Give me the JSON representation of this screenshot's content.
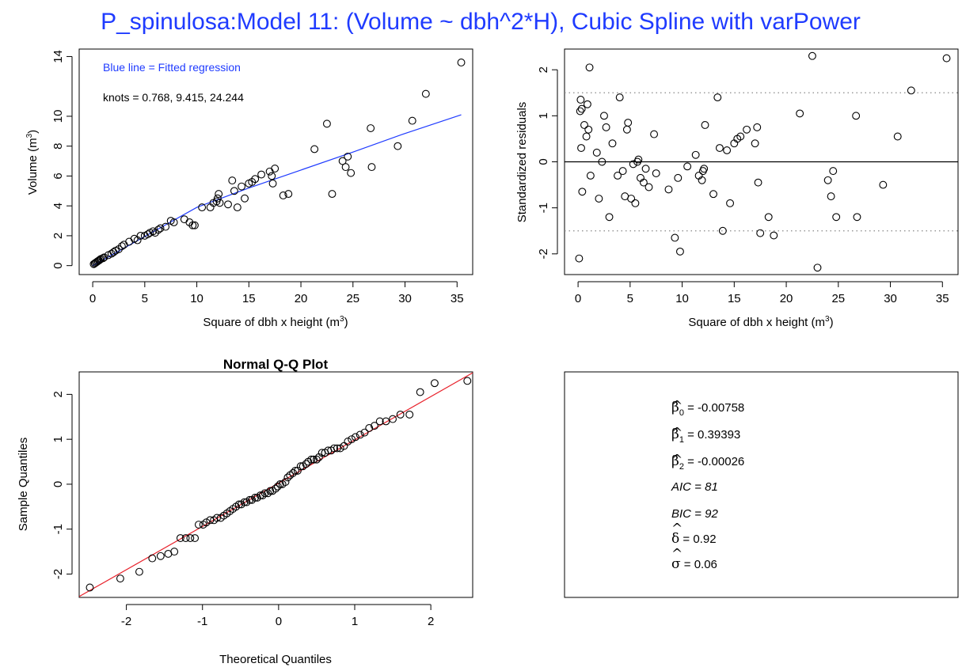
{
  "figure_title": "P_spinulosa:Model 11: (Volume ~ dbh^2*H), Cubic Spline with varPower",
  "colors": {
    "title": "#1f3bff",
    "fit_line": "#1f3bff",
    "qq_line": "#e8202a",
    "qq_points_stroke": "#000000",
    "points": "#000000"
  },
  "chart_data": [
    {
      "type": "scatter",
      "panel": "fitted",
      "xlabel": "Square of dbh x height",
      "xlabel_unit": "(m",
      "xlabel_unit_sup": "3",
      "xlabel_unit_close": ")",
      "ylabel": "Volume",
      "ylabel_unit": "(m",
      "ylabel_unit_sup": "3",
      "ylabel_unit_close": ")",
      "xlim": [
        -1.3,
        36.5
      ],
      "ylim": [
        -0.6,
        14.5
      ],
      "xticks": [
        0,
        5,
        10,
        15,
        20,
        25,
        30,
        35
      ],
      "xtick_labels": [
        "0",
        "5",
        "10",
        "15",
        "20",
        "25",
        "30",
        "35"
      ],
      "yticks": [
        0,
        2,
        4,
        6,
        8,
        10,
        14
      ],
      "ytick_labels": [
        "0",
        "2",
        "4",
        "6",
        "8",
        "10",
        "14"
      ],
      "annotations": [
        "Blue line = Fitted regression",
        "knots = 0.768, 9.415, 24.244"
      ],
      "fitted_line": {
        "x": [
          0,
          5,
          10,
          15,
          20,
          25,
          30,
          35.4
        ],
        "y": [
          0.0,
          1.95,
          3.9,
          5.2,
          6.4,
          7.6,
          8.85,
          10.1
        ]
      },
      "points": {
        "x": [
          0.1,
          0.2,
          0.3,
          0.4,
          0.5,
          0.6,
          0.7,
          0.8,
          1.0,
          1.1,
          1.5,
          1.8,
          2.0,
          2.2,
          2.5,
          2.8,
          3.0,
          3.5,
          4.0,
          4.3,
          4.6,
          5.0,
          5.3,
          5.5,
          5.8,
          6.0,
          6.3,
          6.5,
          7.0,
          7.5,
          7.8,
          8.8,
          9.3,
          9.6,
          9.8,
          10.5,
          11.3,
          11.6,
          11.9,
          12.0,
          12.1,
          12.2,
          13.0,
          13.4,
          13.6,
          13.9,
          14.3,
          14.6,
          15.0,
          15.3,
          15.6,
          16.2,
          17.0,
          17.2,
          17.3,
          17.5,
          18.3,
          18.8,
          21.3,
          22.5,
          23.0,
          24.0,
          24.3,
          24.5,
          24.8,
          26.7,
          26.8,
          29.3,
          30.7,
          32.0,
          35.4
        ],
        "y": [
          0.1,
          0.15,
          0.2,
          0.25,
          0.3,
          0.35,
          0.4,
          0.45,
          0.5,
          0.55,
          0.7,
          0.8,
          0.9,
          1.0,
          1.1,
          1.3,
          1.4,
          1.6,
          1.8,
          1.7,
          2.0,
          2.0,
          2.1,
          2.2,
          2.3,
          2.2,
          2.4,
          2.5,
          2.6,
          3.0,
          2.9,
          3.1,
          2.9,
          2.7,
          2.7,
          3.9,
          3.9,
          4.2,
          4.3,
          4.5,
          4.8,
          4.2,
          4.1,
          5.7,
          5.0,
          3.9,
          5.3,
          4.5,
          5.5,
          5.6,
          5.8,
          6.1,
          6.3,
          6.0,
          5.5,
          6.5,
          4.7,
          4.8,
          7.8,
          9.5,
          4.8,
          7.0,
          6.6,
          7.3,
          6.2,
          9.2,
          6.6,
          8.0,
          9.7,
          11.5,
          13.6
        ]
      }
    },
    {
      "type": "scatter",
      "panel": "residuals",
      "xlabel": "Square of dbh x height",
      "xlabel_unit": "(m",
      "xlabel_unit_sup": "3",
      "xlabel_unit_close": ")",
      "ylabel": "Standardized residuals",
      "xlim": [
        -1.3,
        36.5
      ],
      "ylim": [
        -2.45,
        2.45
      ],
      "xticks": [
        0,
        5,
        10,
        15,
        20,
        25,
        30,
        35
      ],
      "xtick_labels": [
        "0",
        "5",
        "10",
        "15",
        "20",
        "25",
        "30",
        "35"
      ],
      "yticks": [
        -2,
        -1,
        0,
        1,
        2
      ],
      "ytick_labels": [
        "-2",
        "-1",
        "0",
        "1",
        "2"
      ],
      "hlines": [
        {
          "y": 0,
          "style": "solid"
        },
        {
          "y": 1.5,
          "style": "dotted"
        },
        {
          "y": -1.5,
          "style": "dotted"
        }
      ],
      "points": {
        "x": [
          0.1,
          0.2,
          0.25,
          0.3,
          0.35,
          0.4,
          0.6,
          0.8,
          0.9,
          1.0,
          1.1,
          1.2,
          1.8,
          2.0,
          2.3,
          2.5,
          2.7,
          3.0,
          3.3,
          3.8,
          4.0,
          4.3,
          4.5,
          4.7,
          4.8,
          5.1,
          5.3,
          5.5,
          5.7,
          5.8,
          6.0,
          6.3,
          6.5,
          6.8,
          7.3,
          7.5,
          8.7,
          9.3,
          9.6,
          9.8,
          10.5,
          11.3,
          11.6,
          11.9,
          12.0,
          12.1,
          12.2,
          13.0,
          13.4,
          13.6,
          13.9,
          14.3,
          14.6,
          15.0,
          15.3,
          15.6,
          16.2,
          17.0,
          17.2,
          17.3,
          17.5,
          18.3,
          18.8,
          21.3,
          22.5,
          23.0,
          24.0,
          24.3,
          24.5,
          24.8,
          26.7,
          26.8,
          29.3,
          30.7,
          32.0,
          35.4
        ],
        "y": [
          -2.1,
          1.1,
          1.35,
          0.3,
          1.15,
          -0.65,
          0.8,
          0.55,
          1.25,
          0.7,
          2.05,
          -0.3,
          0.2,
          -0.8,
          0.0,
          1.0,
          0.75,
          -1.2,
          0.4,
          -0.3,
          1.4,
          -0.2,
          -0.75,
          0.7,
          0.85,
          -0.8,
          -0.05,
          -0.9,
          0.0,
          0.05,
          -0.35,
          -0.45,
          -0.15,
          -0.55,
          0.6,
          -0.25,
          -0.6,
          -1.65,
          -0.35,
          -1.95,
          -0.1,
          0.15,
          -0.3,
          -0.4,
          -0.2,
          -0.15,
          0.8,
          -0.7,
          1.4,
          0.3,
          -1.5,
          0.25,
          -0.9,
          0.4,
          0.5,
          0.55,
          0.7,
          0.4,
          0.75,
          -0.45,
          -1.55,
          -1.2,
          -1.6,
          1.05,
          2.3,
          -2.3,
          -0.4,
          -0.75,
          -0.2,
          -1.2,
          1.0,
          -1.2,
          -0.5,
          0.55,
          1.55,
          2.25
        ]
      }
    },
    {
      "type": "scatter",
      "panel": "qq",
      "title": "Normal Q-Q Plot",
      "xlabel": "Theoretical Quantiles",
      "ylabel": "Sample Quantiles",
      "xlim": [
        -2.62,
        2.55
      ],
      "ylim": [
        -2.52,
        2.5
      ],
      "xticks": [
        -2,
        -1,
        0,
        1,
        2
      ],
      "xtick_labels": [
        "-2",
        "-1",
        "0",
        "1",
        "2"
      ],
      "yticks": [
        -2,
        -1,
        0,
        1,
        2
      ],
      "ytick_labels": [
        "-2",
        "-1",
        "0",
        "1",
        "2"
      ],
      "qq_line": {
        "x": [
          -2.62,
          2.55
        ],
        "y": [
          -2.5,
          2.48
        ]
      },
      "points": {
        "x": [
          -2.48,
          -2.08,
          -1.83,
          -1.66,
          -1.55,
          -1.45,
          -1.37,
          -1.29,
          -1.22,
          -1.16,
          -1.1,
          -1.05,
          -0.99,
          -0.95,
          -0.9,
          -0.85,
          -0.81,
          -0.76,
          -0.72,
          -0.68,
          -0.64,
          -0.6,
          -0.56,
          -0.52,
          -0.49,
          -0.45,
          -0.42,
          -0.38,
          -0.35,
          -0.31,
          -0.28,
          -0.24,
          -0.21,
          -0.18,
          -0.14,
          -0.11,
          -0.08,
          -0.04,
          -0.01,
          0.02,
          0.05,
          0.09,
          0.12,
          0.15,
          0.19,
          0.22,
          0.25,
          0.29,
          0.32,
          0.36,
          0.39,
          0.43,
          0.46,
          0.5,
          0.53,
          0.57,
          0.61,
          0.65,
          0.69,
          0.73,
          0.77,
          0.81,
          0.86,
          0.91,
          0.96,
          1.01,
          1.07,
          1.13,
          1.19,
          1.26,
          1.33,
          1.41,
          1.5,
          1.6,
          1.72,
          1.86,
          2.05,
          2.48
        ],
        "y": [
          -2.3,
          -2.1,
          -1.95,
          -1.65,
          -1.6,
          -1.55,
          -1.5,
          -1.2,
          -1.2,
          -1.2,
          -1.2,
          -0.9,
          -0.9,
          -0.85,
          -0.8,
          -0.8,
          -0.75,
          -0.75,
          -0.7,
          -0.65,
          -0.6,
          -0.55,
          -0.5,
          -0.45,
          -0.45,
          -0.4,
          -0.4,
          -0.35,
          -0.35,
          -0.3,
          -0.3,
          -0.25,
          -0.25,
          -0.2,
          -0.2,
          -0.15,
          -0.15,
          -0.1,
          -0.05,
          0.0,
          0.0,
          0.05,
          0.15,
          0.2,
          0.25,
          0.3,
          0.3,
          0.4,
          0.4,
          0.45,
          0.5,
          0.55,
          0.55,
          0.55,
          0.6,
          0.7,
          0.7,
          0.75,
          0.75,
          0.8,
          0.8,
          0.8,
          0.85,
          0.95,
          1.0,
          1.05,
          1.1,
          1.15,
          1.25,
          1.3,
          1.4,
          1.4,
          1.45,
          1.55,
          1.55,
          2.05,
          2.25,
          2.3
        ]
      }
    }
  ],
  "stats_box": {
    "beta0": {
      "symbol": "β",
      "hat": "^",
      "sub": "0",
      "text": " = -0.00758"
    },
    "beta1": {
      "symbol": "β",
      "hat": "^",
      "sub": "1",
      "text": " = 0.39393"
    },
    "beta2": {
      "symbol": "β",
      "hat": "^",
      "sub": "2",
      "text": " = -0.00026"
    },
    "aic": "AIC =  81",
    "bic": "BIC =  92",
    "delta": {
      "symbol": "δ",
      "hat": "^",
      "text": " = 0.92"
    },
    "sigma": {
      "symbol": "σ",
      "hat": "^",
      "text": " = 0.06"
    }
  }
}
